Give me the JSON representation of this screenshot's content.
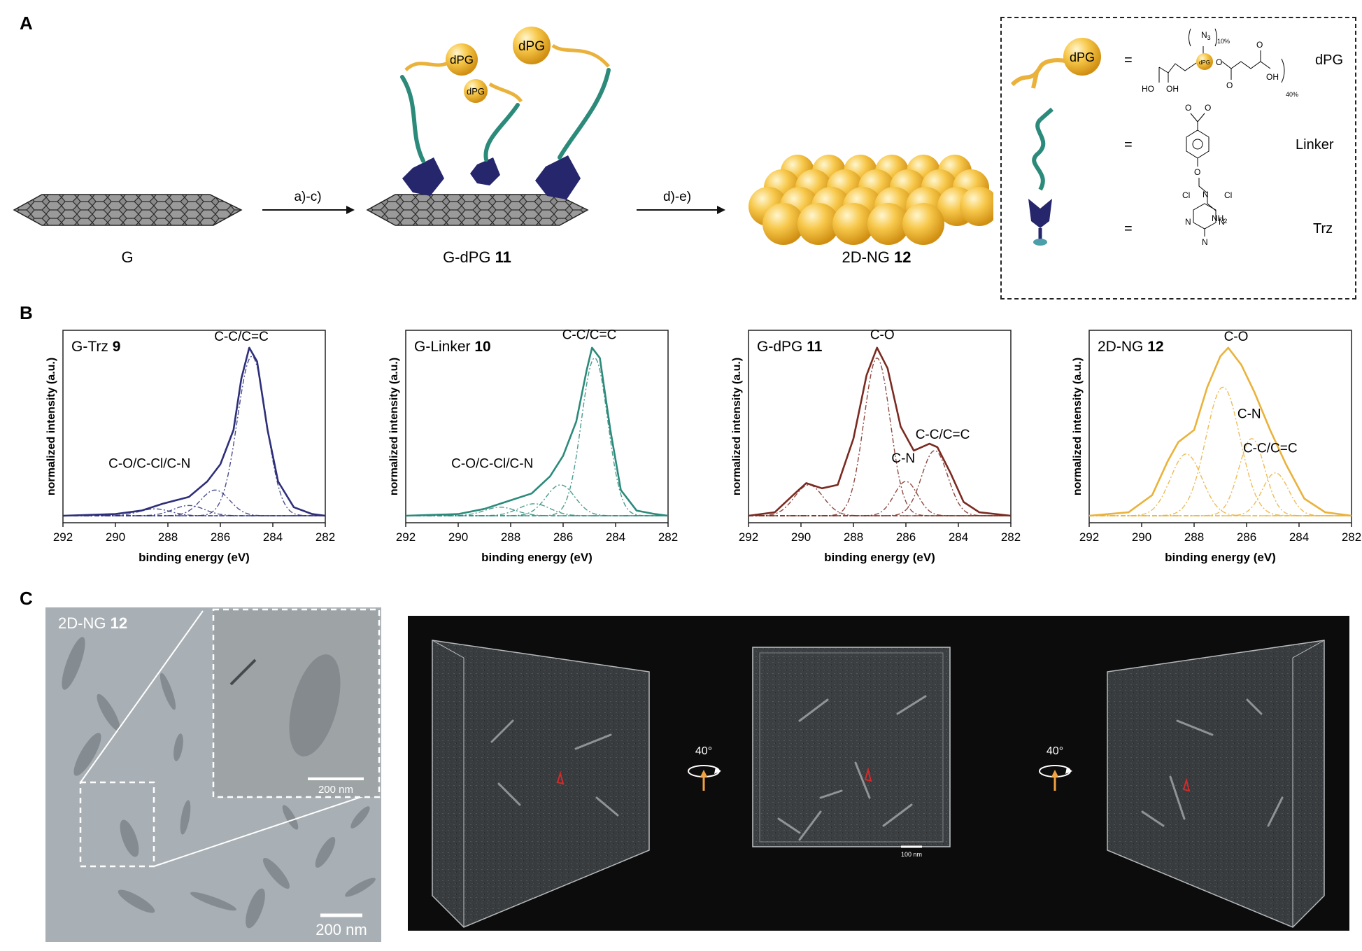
{
  "panels": {
    "a": "A",
    "b": "B",
    "c": "C"
  },
  "scheme": {
    "step1": "a)-c)",
    "step2": "d)-e)",
    "g_label": "G",
    "gdpg_label": "G-dPG",
    "gdpg_num": "11",
    "ng_label": "2D-NG",
    "ng_num": "12",
    "dpg_sphere": "dPG"
  },
  "legend": {
    "eq": "=",
    "dpg_name": "dPG",
    "linker_name": "Linker",
    "trz_name": "Trz",
    "dpg_struct": {
      "n3": "N",
      "n3_sub": "3",
      "pct10": "10%",
      "pct40": "40%",
      "core": "dPG",
      "ho": "HO",
      "oh": "OH",
      "oh2": "OH",
      "o1": "O",
      "o2": "O",
      "o3": "O"
    },
    "linker_struct": {
      "o1": "O",
      "o2": "O",
      "o3": "O",
      "nh2": "NH",
      "nh2_sub": "2"
    },
    "trz_struct": {
      "cl1": "Cl",
      "cl2": "Cl",
      "n1": "N",
      "n2": "N",
      "n3": "N",
      "n4": "N"
    }
  },
  "chart_data": [
    {
      "type": "line",
      "title": "G-Trz",
      "title_num": "9",
      "xlabel": "binding energy (eV)",
      "ylabel": "normalized intensity (a.u.)",
      "xlim": [
        292,
        282
      ],
      "xticks": [
        "292",
        "290",
        "288",
        "286",
        "284",
        "282"
      ],
      "color": "#2e2f7a",
      "annotations": [
        "C-C/C=C",
        "C-O/C-Cl/C-N"
      ],
      "envelope": [
        [
          292,
          0.0
        ],
        [
          290,
          0.01
        ],
        [
          289,
          0.03
        ],
        [
          288.2,
          0.07
        ],
        [
          287.2,
          0.11
        ],
        [
          286.5,
          0.2
        ],
        [
          286,
          0.3
        ],
        [
          285.5,
          0.5
        ],
        [
          285.2,
          0.8
        ],
        [
          284.9,
          0.98
        ],
        [
          284.6,
          0.9
        ],
        [
          284.2,
          0.5
        ],
        [
          283.8,
          0.2
        ],
        [
          283.2,
          0.05
        ],
        [
          282.5,
          0.01
        ],
        [
          282,
          0.0
        ]
      ],
      "components": [
        {
          "center": 284.8,
          "height": 0.93,
          "width": 0.55
        },
        {
          "center": 286.2,
          "height": 0.15,
          "width": 0.55
        },
        {
          "center": 287.2,
          "height": 0.06,
          "width": 0.6
        },
        {
          "center": 288.5,
          "height": 0.04,
          "width": 0.6
        }
      ]
    },
    {
      "type": "line",
      "title": "G-Linker",
      "title_num": "10",
      "xlabel": "binding energy (eV)",
      "ylabel": "normalized intensity (a.u.)",
      "xlim": [
        292,
        282
      ],
      "xticks": [
        "292",
        "290",
        "288",
        "286",
        "284",
        "282"
      ],
      "color": "#2b8a7a",
      "annotations": [
        "C-C/C=C",
        "C-O/C-Cl/C-N"
      ],
      "envelope": [
        [
          292,
          0.0
        ],
        [
          290,
          0.01
        ],
        [
          289,
          0.04
        ],
        [
          288.2,
          0.08
        ],
        [
          287.2,
          0.13
        ],
        [
          286.5,
          0.23
        ],
        [
          286,
          0.35
        ],
        [
          285.5,
          0.55
        ],
        [
          285.1,
          0.85
        ],
        [
          284.9,
          0.98
        ],
        [
          284.6,
          0.92
        ],
        [
          284.2,
          0.5
        ],
        [
          283.8,
          0.15
        ],
        [
          283.2,
          0.03
        ],
        [
          282.5,
          0.01
        ],
        [
          282,
          0.0
        ]
      ],
      "components": [
        {
          "center": 284.8,
          "height": 0.92,
          "width": 0.5
        },
        {
          "center": 286.1,
          "height": 0.18,
          "width": 0.55
        },
        {
          "center": 287.1,
          "height": 0.07,
          "width": 0.6
        },
        {
          "center": 288.4,
          "height": 0.05,
          "width": 0.6
        }
      ]
    },
    {
      "type": "line",
      "title": "G-dPG",
      "title_num": "11",
      "xlabel": "binding energy (eV)",
      "ylabel": "normalized intensity (a.u.)",
      "xlim": [
        292,
        282
      ],
      "xticks": [
        "292",
        "290",
        "288",
        "286",
        "284",
        "282"
      ],
      "color": "#7a2a20",
      "annotations": [
        "C-O",
        "C-C/C=C",
        "C-N"
      ],
      "envelope": [
        [
          292,
          0.0
        ],
        [
          291,
          0.02
        ],
        [
          290.3,
          0.12
        ],
        [
          289.8,
          0.19
        ],
        [
          289.2,
          0.16
        ],
        [
          288.6,
          0.18
        ],
        [
          288,
          0.45
        ],
        [
          287.5,
          0.82
        ],
        [
          287.1,
          0.98
        ],
        [
          286.7,
          0.86
        ],
        [
          286.2,
          0.52
        ],
        [
          285.7,
          0.38
        ],
        [
          285.1,
          0.42
        ],
        [
          284.8,
          0.4
        ],
        [
          284.3,
          0.25
        ],
        [
          283.8,
          0.08
        ],
        [
          283.2,
          0.02
        ],
        [
          282,
          0.0
        ]
      ],
      "components": [
        {
          "center": 287.1,
          "height": 0.92,
          "width": 0.5
        },
        {
          "center": 289.7,
          "height": 0.18,
          "width": 0.55
        },
        {
          "center": 286.0,
          "height": 0.2,
          "width": 0.45
        },
        {
          "center": 284.9,
          "height": 0.38,
          "width": 0.5
        }
      ]
    },
    {
      "type": "line",
      "title": "2D-NG",
      "title_num": "12",
      "xlabel": "binding energy (eV)",
      "ylabel": "normalized intensity (a.u.)",
      "xlim": [
        292,
        282
      ],
      "xticks": [
        "292",
        "290",
        "288",
        "286",
        "284",
        "282"
      ],
      "color": "#eab23b",
      "annotations": [
        "C-O",
        "C-N",
        "C-C/C=C"
      ],
      "envelope": [
        [
          292,
          0.0
        ],
        [
          290.5,
          0.02
        ],
        [
          289.6,
          0.12
        ],
        [
          289,
          0.32
        ],
        [
          288.6,
          0.43
        ],
        [
          288,
          0.5
        ],
        [
          287.5,
          0.75
        ],
        [
          287,
          0.93
        ],
        [
          286.7,
          0.98
        ],
        [
          286.2,
          0.88
        ],
        [
          285.7,
          0.72
        ],
        [
          285.1,
          0.5
        ],
        [
          284.5,
          0.3
        ],
        [
          283.8,
          0.1
        ],
        [
          283,
          0.02
        ],
        [
          282,
          0.0
        ]
      ],
      "components": [
        {
          "center": 288.3,
          "height": 0.36,
          "width": 0.6
        },
        {
          "center": 286.9,
          "height": 0.75,
          "width": 0.65
        },
        {
          "center": 285.8,
          "height": 0.45,
          "width": 0.5
        },
        {
          "center": 284.9,
          "height": 0.25,
          "width": 0.5
        }
      ]
    }
  ],
  "tem": {
    "label": "2D-NG",
    "label_num": "12",
    "scale_main": "200 nm",
    "scale_inset": "200 nm"
  },
  "tomo": {
    "rotation1": "40°",
    "rotation2": "40°",
    "scale": "100 nm"
  }
}
